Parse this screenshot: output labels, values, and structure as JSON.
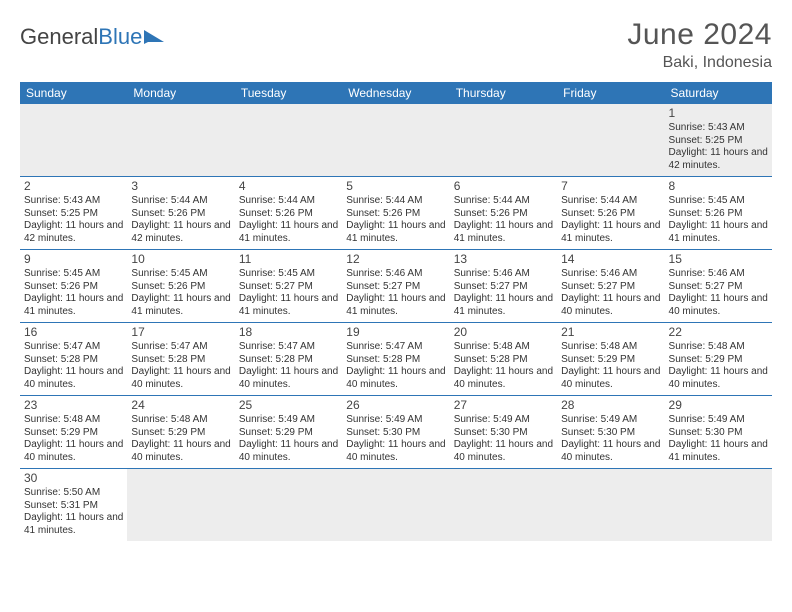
{
  "brand": {
    "general": "General",
    "blue": "Blue"
  },
  "title": "June 2024",
  "location": "Baki, Indonesia",
  "weekdays": [
    "Sunday",
    "Monday",
    "Tuesday",
    "Wednesday",
    "Thursday",
    "Friday",
    "Saturday"
  ],
  "colors": {
    "header_bg": "#2e75b6",
    "header_fg": "#ffffff",
    "row_divider": "#2e75b6",
    "empty_bg": "#ededed"
  },
  "days": {
    "1": {
      "sunrise": "5:43 AM",
      "sunset": "5:25 PM",
      "daylight": "11 hours and 42 minutes."
    },
    "2": {
      "sunrise": "5:43 AM",
      "sunset": "5:25 PM",
      "daylight": "11 hours and 42 minutes."
    },
    "3": {
      "sunrise": "5:44 AM",
      "sunset": "5:26 PM",
      "daylight": "11 hours and 42 minutes."
    },
    "4": {
      "sunrise": "5:44 AM",
      "sunset": "5:26 PM",
      "daylight": "11 hours and 41 minutes."
    },
    "5": {
      "sunrise": "5:44 AM",
      "sunset": "5:26 PM",
      "daylight": "11 hours and 41 minutes."
    },
    "6": {
      "sunrise": "5:44 AM",
      "sunset": "5:26 PM",
      "daylight": "11 hours and 41 minutes."
    },
    "7": {
      "sunrise": "5:44 AM",
      "sunset": "5:26 PM",
      "daylight": "11 hours and 41 minutes."
    },
    "8": {
      "sunrise": "5:45 AM",
      "sunset": "5:26 PM",
      "daylight": "11 hours and 41 minutes."
    },
    "9": {
      "sunrise": "5:45 AM",
      "sunset": "5:26 PM",
      "daylight": "11 hours and 41 minutes."
    },
    "10": {
      "sunrise": "5:45 AM",
      "sunset": "5:26 PM",
      "daylight": "11 hours and 41 minutes."
    },
    "11": {
      "sunrise": "5:45 AM",
      "sunset": "5:27 PM",
      "daylight": "11 hours and 41 minutes."
    },
    "12": {
      "sunrise": "5:46 AM",
      "sunset": "5:27 PM",
      "daylight": "11 hours and 41 minutes."
    },
    "13": {
      "sunrise": "5:46 AM",
      "sunset": "5:27 PM",
      "daylight": "11 hours and 41 minutes."
    },
    "14": {
      "sunrise": "5:46 AM",
      "sunset": "5:27 PM",
      "daylight": "11 hours and 40 minutes."
    },
    "15": {
      "sunrise": "5:46 AM",
      "sunset": "5:27 PM",
      "daylight": "11 hours and 40 minutes."
    },
    "16": {
      "sunrise": "5:47 AM",
      "sunset": "5:28 PM",
      "daylight": "11 hours and 40 minutes."
    },
    "17": {
      "sunrise": "5:47 AM",
      "sunset": "5:28 PM",
      "daylight": "11 hours and 40 minutes."
    },
    "18": {
      "sunrise": "5:47 AM",
      "sunset": "5:28 PM",
      "daylight": "11 hours and 40 minutes."
    },
    "19": {
      "sunrise": "5:47 AM",
      "sunset": "5:28 PM",
      "daylight": "11 hours and 40 minutes."
    },
    "20": {
      "sunrise": "5:48 AM",
      "sunset": "5:28 PM",
      "daylight": "11 hours and 40 minutes."
    },
    "21": {
      "sunrise": "5:48 AM",
      "sunset": "5:29 PM",
      "daylight": "11 hours and 40 minutes."
    },
    "22": {
      "sunrise": "5:48 AM",
      "sunset": "5:29 PM",
      "daylight": "11 hours and 40 minutes."
    },
    "23": {
      "sunrise": "5:48 AM",
      "sunset": "5:29 PM",
      "daylight": "11 hours and 40 minutes."
    },
    "24": {
      "sunrise": "5:48 AM",
      "sunset": "5:29 PM",
      "daylight": "11 hours and 40 minutes."
    },
    "25": {
      "sunrise": "5:49 AM",
      "sunset": "5:29 PM",
      "daylight": "11 hours and 40 minutes."
    },
    "26": {
      "sunrise": "5:49 AM",
      "sunset": "5:30 PM",
      "daylight": "11 hours and 40 minutes."
    },
    "27": {
      "sunrise": "5:49 AM",
      "sunset": "5:30 PM",
      "daylight": "11 hours and 40 minutes."
    },
    "28": {
      "sunrise": "5:49 AM",
      "sunset": "5:30 PM",
      "daylight": "11 hours and 40 minutes."
    },
    "29": {
      "sunrise": "5:49 AM",
      "sunset": "5:30 PM",
      "daylight": "11 hours and 41 minutes."
    },
    "30": {
      "sunrise": "5:50 AM",
      "sunset": "5:31 PM",
      "daylight": "11 hours and 41 minutes."
    }
  },
  "labels": {
    "sunrise": "Sunrise: ",
    "sunset": "Sunset: ",
    "daylight": "Daylight: "
  },
  "grid": [
    [
      null,
      null,
      null,
      null,
      null,
      null,
      "1"
    ],
    [
      "2",
      "3",
      "4",
      "5",
      "6",
      "7",
      "8"
    ],
    [
      "9",
      "10",
      "11",
      "12",
      "13",
      "14",
      "15"
    ],
    [
      "16",
      "17",
      "18",
      "19",
      "20",
      "21",
      "22"
    ],
    [
      "23",
      "24",
      "25",
      "26",
      "27",
      "28",
      "29"
    ],
    [
      "30",
      null,
      null,
      null,
      null,
      null,
      null
    ]
  ]
}
